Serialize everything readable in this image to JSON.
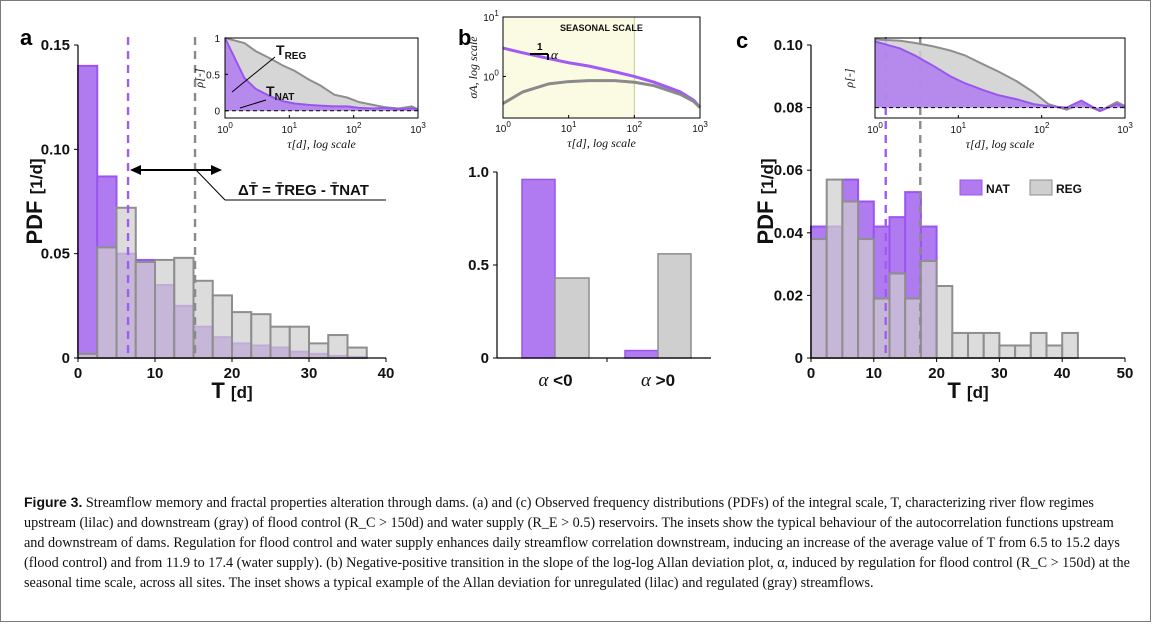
{
  "colors": {
    "nat": "#b07bf0",
    "nat_edge": "#9a55ee",
    "reg": "#cfcfcf",
    "reg_edge": "#8e8e8e",
    "nat_line": "#a15bf2",
    "reg_line": "#8a8a8a",
    "inset_b_bg": "#fbfbe3"
  },
  "panel_a": {
    "letter": "a",
    "annotation_eq": "ΔT̄ = T̄REG - T̄NAT",
    "inset_label_reg": "TREG",
    "inset_label_nat": "TNAT"
  },
  "panel_b": {
    "letter": "b",
    "inset_title": "SEASONAL SCALE",
    "slope_one": "1",
    "slope_alpha": "α"
  },
  "panel_c": {
    "letter": "c",
    "legend_nat": "NAT",
    "legend_reg": "REG"
  },
  "caption": {
    "label": "Figure 3.",
    "text": "Streamflow memory and fractal properties alteration through dams. (a) and (c) Observed frequency distributions (PDFs) of the integral scale, T, characterizing river flow regimes upstream (lilac) and downstream (gray) of flood control (R_C > 150d) and water supply (R_E > 0.5) reservoirs. The insets show the typical behaviour of the autocorrelation functions upstream and downstream of dams. Regulation for flood control and water supply enhances daily streamflow correlation downstream, inducing an increase of the average value of T from 6.5 to 15.2 days (flood control) and from 11.9 to 17.4 (water supply). (b) Negative-positive transition in the slope of the log-log Allan deviation plot, α, induced by regulation for flood control (R_C > 150d) at the seasonal time scale, across all sites. The inset shows a typical example of the Allan deviation for unregulated (lilac) and regulated (gray) streamflows."
  },
  "chart_data": [
    {
      "id": "a",
      "type": "bar",
      "xlabel": "T [d]",
      "ylabel": "PDF [1/d]",
      "xlim": [
        0,
        40
      ],
      "ylim": [
        0,
        0.15
      ],
      "xticks": [
        0,
        10,
        20,
        30,
        40
      ],
      "yticks": [
        0,
        0.05,
        0.1,
        0.15
      ],
      "ytick_labels": [
        "0",
        "0.05",
        "0.10",
        "0.15"
      ],
      "bin_edges": [
        0,
        2.5,
        5,
        7.5,
        10,
        12.5,
        15,
        17.5,
        20,
        22.5,
        25,
        27.5,
        30,
        32.5,
        35,
        37.5
      ],
      "series": [
        {
          "name": "NAT",
          "values": [
            0.14,
            0.087,
            0.05,
            0.047,
            0.035,
            0.025,
            0.015,
            0.01,
            0.007,
            0.006,
            0.005,
            0.003,
            0.002,
            0.001,
            0.0005
          ]
        },
        {
          "name": "REG",
          "values": [
            0.002,
            0.053,
            0.072,
            0.046,
            0.047,
            0.048,
            0.037,
            0.03,
            0.022,
            0.021,
            0.015,
            0.015,
            0.007,
            0.011,
            0.005
          ]
        }
      ],
      "vlines": [
        {
          "x": 6.5,
          "series": "NAT"
        },
        {
          "x": 15.2,
          "series": "REG"
        }
      ]
    },
    {
      "id": "a-inset",
      "type": "area",
      "xlabel": "τ[d], log scale",
      "ylabel": "ρ[-]",
      "x_scale": "log",
      "xlim": [
        1,
        1000
      ],
      "ylim": [
        -0.1,
        1
      ],
      "xticks": [
        1,
        10,
        100,
        1000
      ],
      "xtick_labels": [
        "10⁰",
        "10¹",
        "10²",
        "10³"
      ],
      "yticks": [
        0,
        0.5,
        1
      ],
      "ytick_labels": [
        "0",
        "0.5",
        "1"
      ],
      "x": [
        1,
        2,
        3,
        5,
        8,
        12,
        20,
        30,
        50,
        80,
        120,
        200,
        300,
        500,
        800,
        1000
      ],
      "series": [
        {
          "name": "REG",
          "values": [
            1.0,
            0.93,
            0.82,
            0.72,
            0.62,
            0.55,
            0.43,
            0.35,
            0.22,
            0.18,
            0.12,
            0.08,
            0.05,
            0.03,
            0.06,
            0.02
          ]
        },
        {
          "name": "NAT",
          "values": [
            1.0,
            0.45,
            0.3,
            0.2,
            0.13,
            0.1,
            0.08,
            0.07,
            0.06,
            0.06,
            0.04,
            0.03,
            0.04,
            0.02,
            0.03,
            0.02
          ]
        }
      ]
    },
    {
      "id": "b",
      "type": "bar",
      "categories": [
        "α <0",
        "α >0"
      ],
      "ylim": [
        0,
        1.0
      ],
      "yticks": [
        0,
        0.5,
        1.0
      ],
      "ytick_labels": [
        "0",
        "0.5",
        "1.0"
      ],
      "series": [
        {
          "name": "NAT",
          "values": [
            0.96,
            0.04
          ]
        },
        {
          "name": "REG",
          "values": [
            0.43,
            0.56
          ]
        }
      ]
    },
    {
      "id": "b-inset",
      "type": "line",
      "xlabel": "τ[d], log scale",
      "ylabel": "σA, log scale",
      "x_scale": "log",
      "y_scale": "log",
      "xlim": [
        1,
        1000
      ],
      "ylim": [
        0.2,
        10
      ],
      "xticks": [
        1,
        10,
        100,
        1000
      ],
      "xtick_labels": [
        "10⁰",
        "10¹",
        "10²",
        "10³"
      ],
      "yticks": [
        1,
        10
      ],
      "ytick_labels": [
        "10⁰",
        "10¹"
      ],
      "highlight_range": [
        1,
        100
      ],
      "x": [
        1,
        2,
        5,
        10,
        20,
        50,
        100,
        200,
        500,
        800,
        1000
      ],
      "series": [
        {
          "name": "NAT",
          "values": [
            3.0,
            2.5,
            2.0,
            1.7,
            1.5,
            1.2,
            1.0,
            0.8,
            0.55,
            0.4,
            0.3
          ]
        },
        {
          "name": "REG",
          "values": [
            0.35,
            0.55,
            0.75,
            0.82,
            0.85,
            0.85,
            0.8,
            0.7,
            0.5,
            0.38,
            0.3
          ]
        }
      ]
    },
    {
      "id": "c",
      "type": "bar",
      "xlabel": "T [d]",
      "ylabel": "PDF [1/d]",
      "xlim": [
        0,
        50
      ],
      "ylim": [
        0,
        0.1
      ],
      "xticks": [
        0,
        10,
        20,
        30,
        40,
        50
      ],
      "yticks": [
        0,
        0.02,
        0.04,
        0.06,
        0.08,
        0.1
      ],
      "ytick_labels": [
        "0",
        "0.02",
        "0.04",
        "0.06",
        "0.08",
        "0.10"
      ],
      "bin_edges": [
        0,
        2.5,
        5,
        7.5,
        10,
        12.5,
        15,
        17.5,
        20,
        22.5,
        25,
        27.5,
        30,
        32.5,
        35,
        37.5,
        40,
        42.5,
        45
      ],
      "series": [
        {
          "name": "NAT",
          "values": [
            0.042,
            0.042,
            0.057,
            0.05,
            0.042,
            0.045,
            0.053,
            0.042,
            0,
            0,
            0,
            0,
            0,
            0,
            0,
            0,
            0,
            0
          ]
        },
        {
          "name": "REG",
          "values": [
            0.038,
            0.057,
            0.05,
            0.038,
            0.019,
            0.027,
            0.019,
            0.031,
            0.023,
            0.008,
            0.008,
            0.008,
            0.004,
            0.004,
            0.008,
            0.004,
            0.008,
            0
          ]
        }
      ],
      "vlines": [
        {
          "x": 11.9,
          "series": "NAT"
        },
        {
          "x": 17.4,
          "series": "REG"
        }
      ],
      "legend": [
        "NAT",
        "REG"
      ]
    },
    {
      "id": "c-inset",
      "type": "area",
      "xlabel": "τ[d], log scale",
      "ylabel": "ρ[-]",
      "x_scale": "log",
      "xlim": [
        1,
        1000
      ],
      "ylim": [
        -0.15,
        1
      ],
      "xticks": [
        1,
        10,
        100,
        1000
      ],
      "xtick_labels": [
        "10⁰",
        "10¹",
        "10²",
        "10³"
      ],
      "x": [
        1,
        2,
        3,
        5,
        8,
        12,
        20,
        30,
        50,
        80,
        120,
        200,
        300,
        500,
        800,
        1000
      ],
      "series": [
        {
          "name": "REG",
          "values": [
            0.98,
            0.96,
            0.93,
            0.88,
            0.82,
            0.75,
            0.62,
            0.52,
            0.38,
            0.22,
            0.05,
            -0.03,
            0.06,
            -0.05,
            0.08,
            0.02
          ]
        },
        {
          "name": "NAT",
          "values": [
            0.95,
            0.85,
            0.75,
            0.6,
            0.45,
            0.35,
            0.25,
            0.18,
            0.12,
            0.05,
            0.02,
            0.0,
            0.1,
            -0.05,
            0.05,
            0.0
          ]
        }
      ]
    }
  ]
}
